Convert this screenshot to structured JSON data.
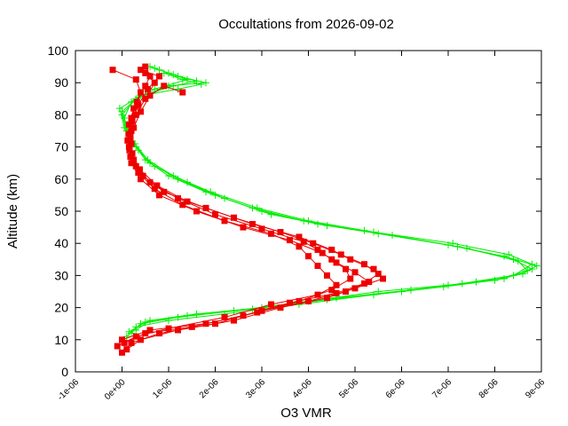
{
  "chart_data": {
    "type": "scatter",
    "title": "Occultations from 2026-09-02",
    "xlabel": "O3 VMR",
    "ylabel": "Altitude (km)",
    "xlim": [
      -1e-06,
      9e-06
    ],
    "ylim": [
      0,
      100
    ],
    "x_ticks": [
      {
        "value": -1e-06,
        "label": "-1e-06"
      },
      {
        "value": 0,
        "label": "0e+00"
      },
      {
        "value": 1e-06,
        "label": "1e-06"
      },
      {
        "value": 2e-06,
        "label": "2e-06"
      },
      {
        "value": 3e-06,
        "label": "3e-06"
      },
      {
        "value": 4e-06,
        "label": "4e-06"
      },
      {
        "value": 5e-06,
        "label": "5e-06"
      },
      {
        "value": 6e-06,
        "label": "6e-06"
      },
      {
        "value": 7e-06,
        "label": "7e-06"
      },
      {
        "value": 8e-06,
        "label": "8e-06"
      },
      {
        "value": 9e-06,
        "label": "9e-06"
      }
    ],
    "y_ticks": [
      {
        "value": 0,
        "label": "0"
      },
      {
        "value": 10,
        "label": "10"
      },
      {
        "value": 20,
        "label": "20"
      },
      {
        "value": 30,
        "label": "30"
      },
      {
        "value": 40,
        "label": "40"
      },
      {
        "value": 50,
        "label": "50"
      },
      {
        "value": 60,
        "label": "60"
      },
      {
        "value": 70,
        "label": "70"
      },
      {
        "value": 80,
        "label": "80"
      },
      {
        "value": 90,
        "label": "90"
      },
      {
        "value": 100,
        "label": "100"
      }
    ],
    "grid": false,
    "series": [
      {
        "marker": "plus",
        "color": "#00ee00",
        "profiles": [
          [
            [
              2e-07,
              12
            ],
            [
              4e-07,
              15
            ],
            [
              1.2e-06,
              17
            ],
            [
              2.4e-06,
              19
            ],
            [
              4e-06,
              22
            ],
            [
              5.5e-06,
              25
            ],
            [
              7e-06,
              27
            ],
            [
              8.2e-06,
              29
            ],
            [
              8.8e-06,
              32
            ],
            [
              8.4e-06,
              35
            ],
            [
              7.2e-06,
              39
            ],
            [
              5.5e-06,
              43
            ],
            [
              4.2e-06,
              46
            ],
            [
              3e-06,
              50
            ],
            [
              2e-06,
              55
            ],
            [
              1.2e-06,
              60
            ],
            [
              6e-07,
              65
            ],
            [
              3e-07,
              70
            ],
            [
              1e-07,
              75
            ],
            [
              0.0,
              80
            ],
            [
              3e-07,
              85
            ],
            [
              1e-06,
              89
            ],
            [
              1.8e-06,
              90
            ],
            [
              1.2e-06,
              92
            ],
            [
              8e-07,
              94
            ]
          ],
          [
            [
              1e-07,
              11
            ],
            [
              3e-07,
              14
            ],
            [
              1e-06,
              16
            ],
            [
              2.2e-06,
              18
            ],
            [
              3.8e-06,
              21
            ],
            [
              5.4e-06,
              24
            ],
            [
              6.9e-06,
              26.5
            ],
            [
              8e-06,
              28.5
            ],
            [
              8.7e-06,
              31.5
            ],
            [
              8.5e-06,
              34.5
            ],
            [
              7.4e-06,
              38.5
            ],
            [
              5.8e-06,
              42.5
            ],
            [
              4.4e-06,
              45.5
            ],
            [
              3.2e-06,
              49
            ],
            [
              2.2e-06,
              54
            ],
            [
              1.4e-06,
              59
            ],
            [
              7e-07,
              64
            ],
            [
              3.5e-07,
              69
            ],
            [
              1.5e-07,
              74
            ],
            [
              5e-08,
              79
            ],
            [
              2e-07,
              84
            ],
            [
              7e-07,
              88
            ],
            [
              1.4e-06,
              91
            ],
            [
              1e-06,
              93
            ],
            [
              6e-07,
              95
            ]
          ],
          [
            [
              3e-07,
              13
            ],
            [
              6e-07,
              16
            ],
            [
              1.6e-06,
              18
            ],
            [
              3e-06,
              20
            ],
            [
              4.6e-06,
              23
            ],
            [
              6.2e-06,
              25.5
            ],
            [
              7.6e-06,
              28
            ],
            [
              8.6e-06,
              30.5
            ],
            [
              8.9e-06,
              33
            ],
            [
              8.2e-06,
              36
            ],
            [
              7e-06,
              39.5
            ],
            [
              5.2e-06,
              44
            ],
            [
              3.9e-06,
              47
            ],
            [
              2.8e-06,
              51
            ],
            [
              1.8e-06,
              56
            ],
            [
              1e-06,
              61
            ],
            [
              5e-07,
              66
            ],
            [
              2.5e-07,
              71
            ],
            [
              5e-08,
              76
            ],
            [
              -5e-08,
              82
            ],
            [
              4e-07,
              86
            ],
            [
              1.2e-06,
              88
            ],
            [
              1.7e-06,
              89.5
            ],
            [
              1.3e-06,
              91
            ],
            [
              9e-07,
              93
            ]
          ],
          [
            [
              1.5e-07,
              12.5
            ],
            [
              5e-07,
              15.5
            ],
            [
              1.4e-06,
              17.5
            ],
            [
              2.8e-06,
              19.5
            ],
            [
              4.4e-06,
              22.5
            ],
            [
              6e-06,
              25
            ],
            [
              7.3e-06,
              27.5
            ],
            [
              8.4e-06,
              30
            ],
            [
              8.8e-06,
              33.5
            ],
            [
              8.3e-06,
              36.5
            ],
            [
              7.1e-06,
              40
            ],
            [
              5.4e-06,
              43.5
            ],
            [
              4e-06,
              47
            ],
            [
              2.9e-06,
              51
            ],
            [
              1.9e-06,
              56
            ],
            [
              1.1e-06,
              61
            ],
            [
              5.5e-07,
              66
            ],
            [
              2.8e-07,
              71
            ],
            [
              1e-07,
              76
            ],
            [
              0.0,
              81
            ],
            [
              3.5e-07,
              85.5
            ],
            [
              1.1e-06,
              89
            ],
            [
              1.6e-06,
              90.5
            ],
            [
              1.1e-06,
              92.5
            ],
            [
              7e-07,
              94.5
            ]
          ]
        ]
      },
      {
        "marker": "square",
        "color": "#ee0000",
        "profiles": [
          [
            [
              0.0,
              6
            ],
            [
              2e-07,
              9
            ],
            [
              8e-07,
              12
            ],
            [
              2e-06,
              15
            ],
            [
              3e-06,
              19
            ],
            [
              4e-06,
              22
            ],
            [
              4.8e-06,
              25
            ],
            [
              5.3e-06,
              28
            ],
            [
              5e-06,
              31
            ],
            [
              4.6e-06,
              34
            ],
            [
              4.3e-06,
              37
            ],
            [
              3.6e-06,
              41
            ],
            [
              2.6e-06,
              45
            ],
            [
              1.6e-06,
              50
            ],
            [
              8e-07,
              55
            ],
            [
              4e-07,
              60
            ],
            [
              2e-07,
              65
            ],
            [
              1.5e-07,
              70
            ],
            [
              2e-07,
              75
            ],
            [
              3e-07,
              80
            ],
            [
              5e-07,
              85
            ],
            [
              7e-07,
              90
            ],
            [
              5e-07,
              93
            ]
          ],
          [
            [
              1e-07,
              7
            ],
            [
              4e-07,
              10
            ],
            [
              1.2e-06,
              13
            ],
            [
              2.4e-06,
              16
            ],
            [
              3.4e-06,
              20
            ],
            [
              4.4e-06,
              23
            ],
            [
              5e-06,
              26
            ],
            [
              5.6e-06,
              29
            ],
            [
              5.4e-06,
              32
            ],
            [
              4.9e-06,
              35
            ],
            [
              4.5e-06,
              38
            ],
            [
              3.8e-06,
              42
            ],
            [
              2.8e-06,
              46
            ],
            [
              1.8e-06,
              51
            ],
            [
              9e-07,
              56
            ],
            [
              4.5e-07,
              61
            ],
            [
              2.5e-07,
              66
            ],
            [
              2e-07,
              71
            ],
            [
              2.5e-07,
              76
            ],
            [
              4e-07,
              81
            ],
            [
              6e-07,
              86
            ],
            [
              9e-07,
              89
            ],
            [
              1.3e-06,
              87
            ]
          ],
          [
            [
              -1e-07,
              8
            ],
            [
              3e-07,
              11
            ],
            [
              1e-06,
              13.5
            ],
            [
              2.2e-06,
              17
            ],
            [
              3.2e-06,
              21
            ],
            [
              4.2e-06,
              24
            ],
            [
              4.6e-06,
              27
            ],
            [
              4.4e-06,
              30
            ],
            [
              4.2e-06,
              33
            ],
            [
              4e-06,
              36
            ],
            [
              3.8e-06,
              39
            ],
            [
              3.2e-06,
              43
            ],
            [
              2.2e-06,
              47
            ],
            [
              1.3e-06,
              52
            ],
            [
              7e-07,
              57
            ],
            [
              3.5e-07,
              62
            ],
            [
              1.8e-07,
              67
            ],
            [
              1.2e-07,
              72
            ],
            [
              1.5e-07,
              77
            ],
            [
              2.5e-07,
              82
            ],
            [
              4e-07,
              87
            ],
            [
              3e-07,
              91
            ],
            [
              -2e-07,
              94
            ]
          ],
          [
            [
              5e-08,
              9
            ],
            [
              5e-07,
              12
            ],
            [
              1.5e-06,
              14
            ],
            [
              2.6e-06,
              17.5
            ],
            [
              3.6e-06,
              21.5
            ],
            [
              4.6e-06,
              24.5
            ],
            [
              5.2e-06,
              27.5
            ],
            [
              5.5e-06,
              30.5
            ],
            [
              5.2e-06,
              33.5
            ],
            [
              4.7e-06,
              36.5
            ],
            [
              4.1e-06,
              40
            ],
            [
              3.4e-06,
              43.5
            ],
            [
              2.4e-06,
              48
            ],
            [
              1.4e-06,
              53
            ],
            [
              7.5e-07,
              58
            ],
            [
              3.8e-07,
              63
            ],
            [
              2.2e-07,
              68
            ],
            [
              1.8e-07,
              73
            ],
            [
              2.2e-07,
              78
            ],
            [
              3.5e-07,
              83
            ],
            [
              5.5e-07,
              88
            ],
            [
              8e-07,
              92
            ],
            [
              4e-07,
              94
            ]
          ],
          [
            [
              0.0,
              10
            ],
            [
              6e-07,
              13
            ],
            [
              1.8e-06,
              15
            ],
            [
              2.9e-06,
              18.5
            ],
            [
              3.8e-06,
              22
            ],
            [
              4.5e-06,
              25.5
            ],
            [
              4.9e-06,
              29
            ],
            [
              4.8e-06,
              32
            ],
            [
              4.5e-06,
              35
            ],
            [
              4.2e-06,
              38
            ],
            [
              3.9e-06,
              40.5
            ],
            [
              3e-06,
              44.5
            ],
            [
              2e-06,
              49
            ],
            [
              1.2e-06,
              54
            ],
            [
              6e-07,
              59
            ],
            [
              3e-07,
              64
            ],
            [
              1.6e-07,
              69
            ],
            [
              1.4e-07,
              74
            ],
            [
              2e-07,
              79
            ],
            [
              3.2e-07,
              84
            ],
            [
              5e-07,
              89
            ],
            [
              6e-07,
              92
            ],
            [
              5e-07,
              95
            ]
          ]
        ]
      }
    ]
  }
}
